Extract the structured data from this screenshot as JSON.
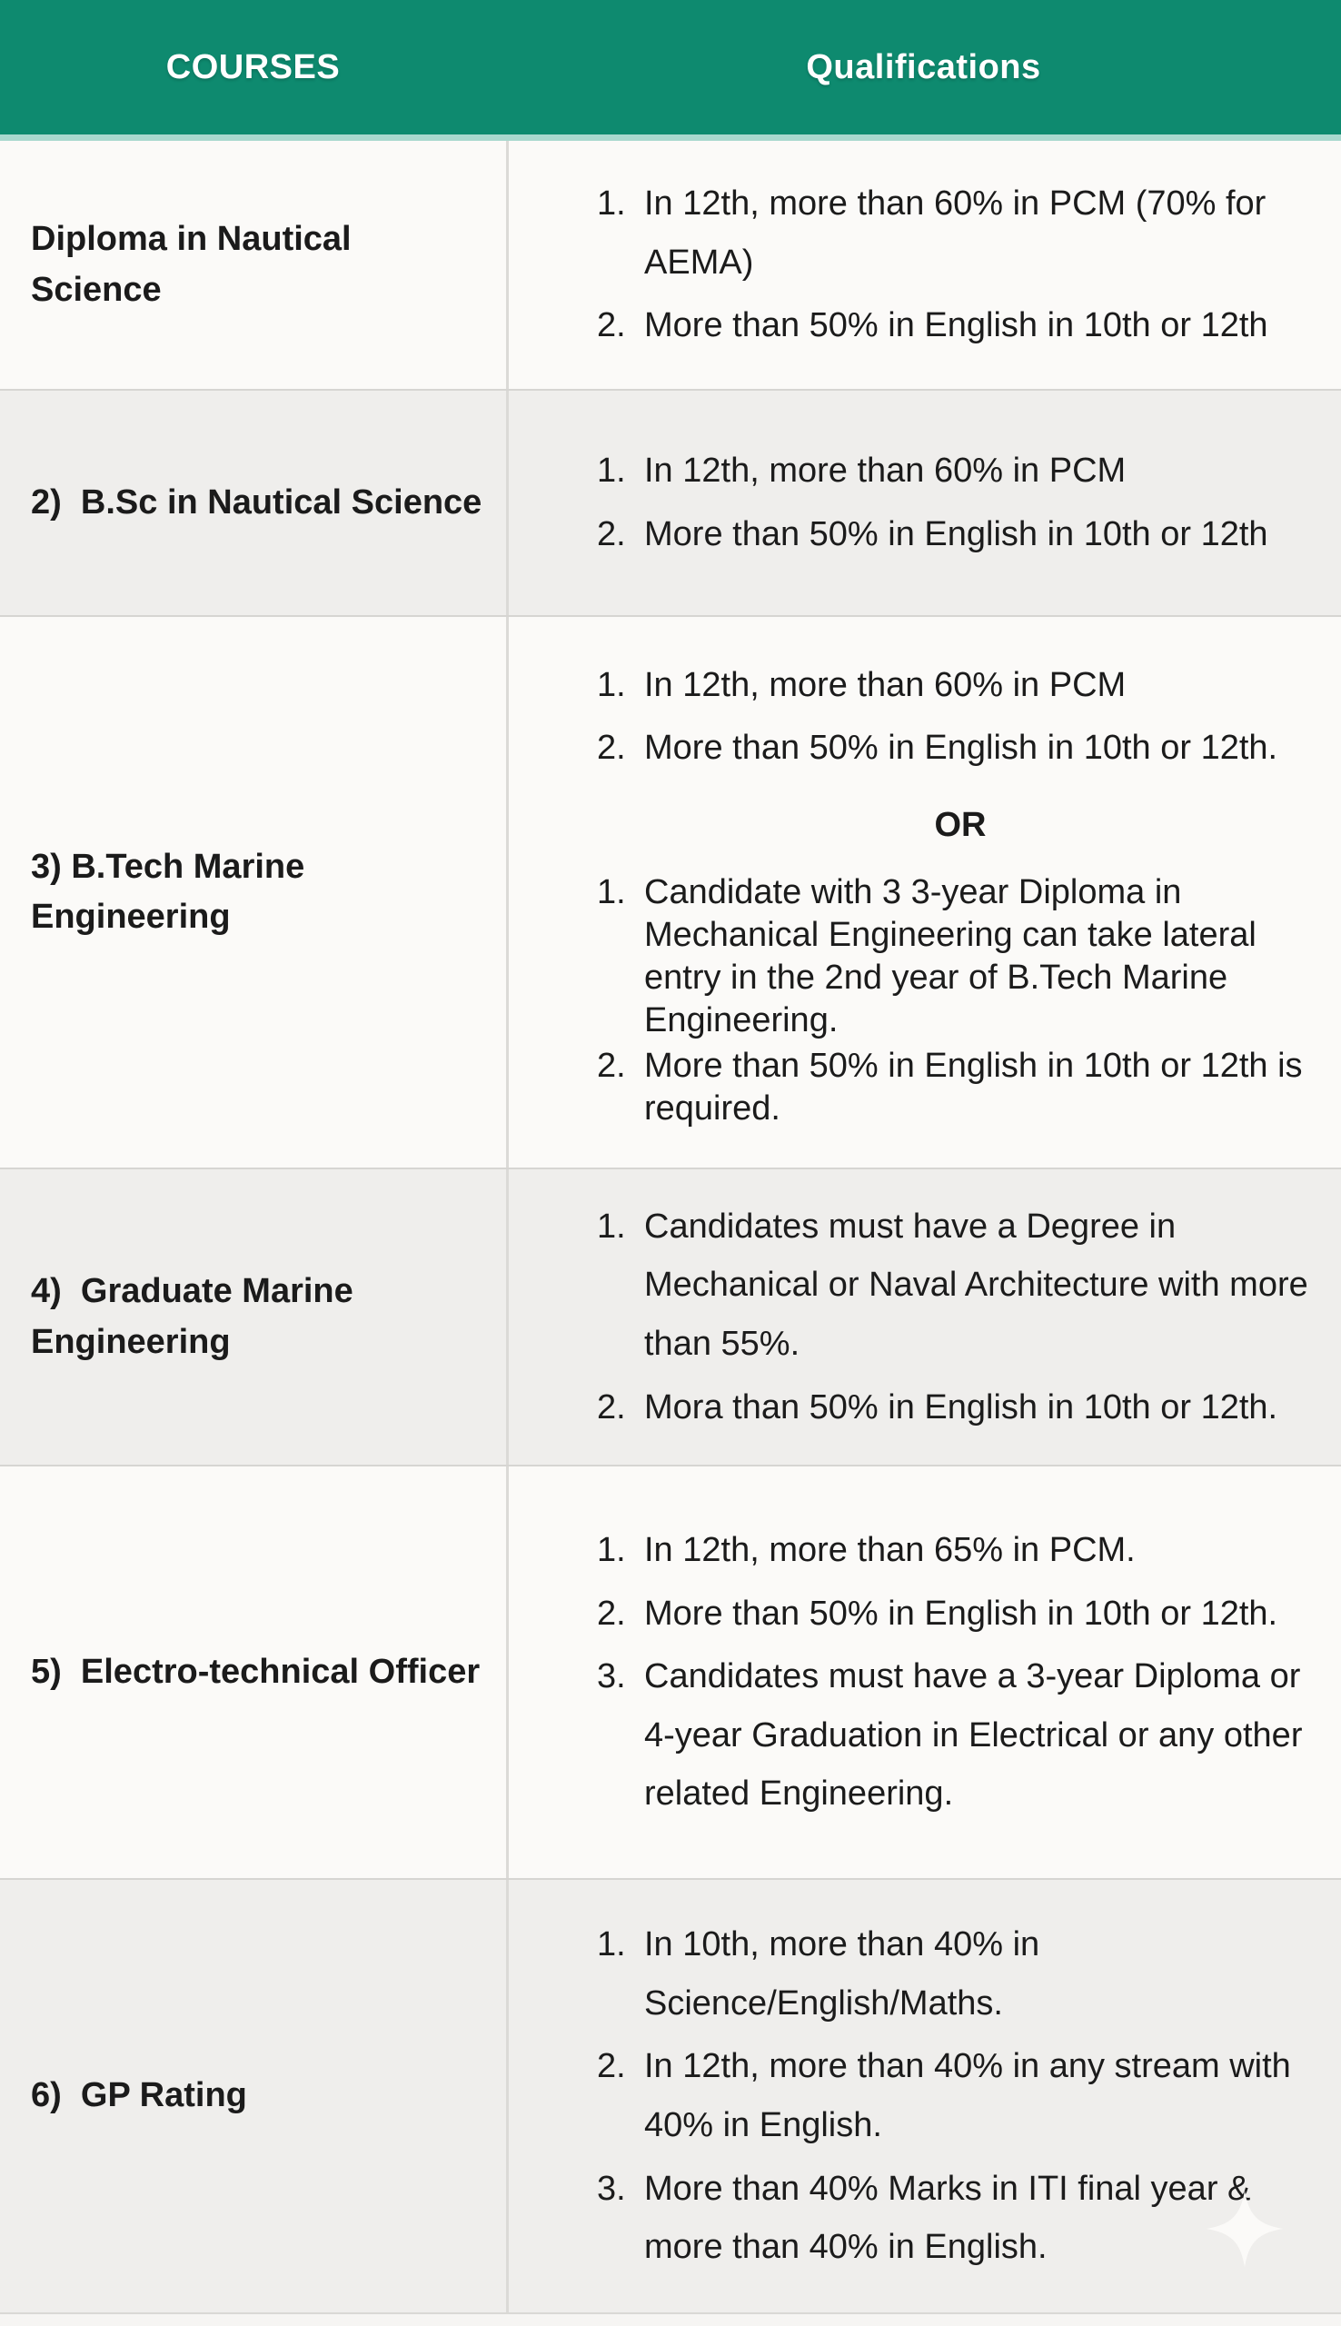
{
  "header": {
    "courses": "COURSES",
    "qualifications": "Qualifications"
  },
  "colors": {
    "header_bg": "#0e8a6f",
    "header_underline": "#a9d8ce",
    "header_text": "#ffffff",
    "row_light": "#fbfaf8",
    "row_dark": "#efeeec",
    "body_text": "#1b1b1b"
  },
  "icons": {
    "sparkle": "sparkle-icon"
  },
  "rows": [
    {
      "course": "Diploma in Nautical Science",
      "groups": [
        {
          "items": [
            "In 12th, more than 60% in PCM (70% for AEMA)",
            "More than 50% in English in 10th or 12th"
          ]
        }
      ]
    },
    {
      "course": "2)  B.Sc in Nautical Science",
      "groups": [
        {
          "items": [
            "In 12th, more than 60% in PCM",
            "More than 50% in English in 10th or 12th"
          ]
        }
      ]
    },
    {
      "course": "3) B.Tech Marine Engineering",
      "separator": "OR",
      "groups": [
        {
          "items": [
            "In 12th, more than 60% in PCM",
            "More than 50% in English in 10th or 12th."
          ]
        },
        {
          "items": [
            "Candidate with 3 3-year Diploma in Mechanical Engineering can take lateral entry in the 2nd year of B.Tech Marine Engineering.",
            "More than 50% in English in 10th or 12th is required."
          ]
        }
      ]
    },
    {
      "course": "4)  Graduate Marine Engineering",
      "groups": [
        {
          "items": [
            "Candidates must have a Degree in Mechanical or Naval Architecture with more than 55%.",
            "Mora than 50% in English in 10th or 12th."
          ]
        }
      ]
    },
    {
      "course": "5)  Electro-technical Officer",
      "groups": [
        {
          "items": [
            "In 12th, more than 65% in PCM.",
            "More than 50% in English in 10th or 12th.",
            "Candidates must have a 3-year Diploma or 4-year Graduation in Electrical or any other related Engineering."
          ]
        }
      ]
    },
    {
      "course": "6)  GP Rating",
      "groups": [
        {
          "items": [
            "In 10th, more than 40% in Science/English/Maths.",
            "In 12th, more than 40% in any stream with 40% in English.",
            "More than 40% Marks in ITI final year & more than 40% in English."
          ]
        }
      ]
    }
  ]
}
